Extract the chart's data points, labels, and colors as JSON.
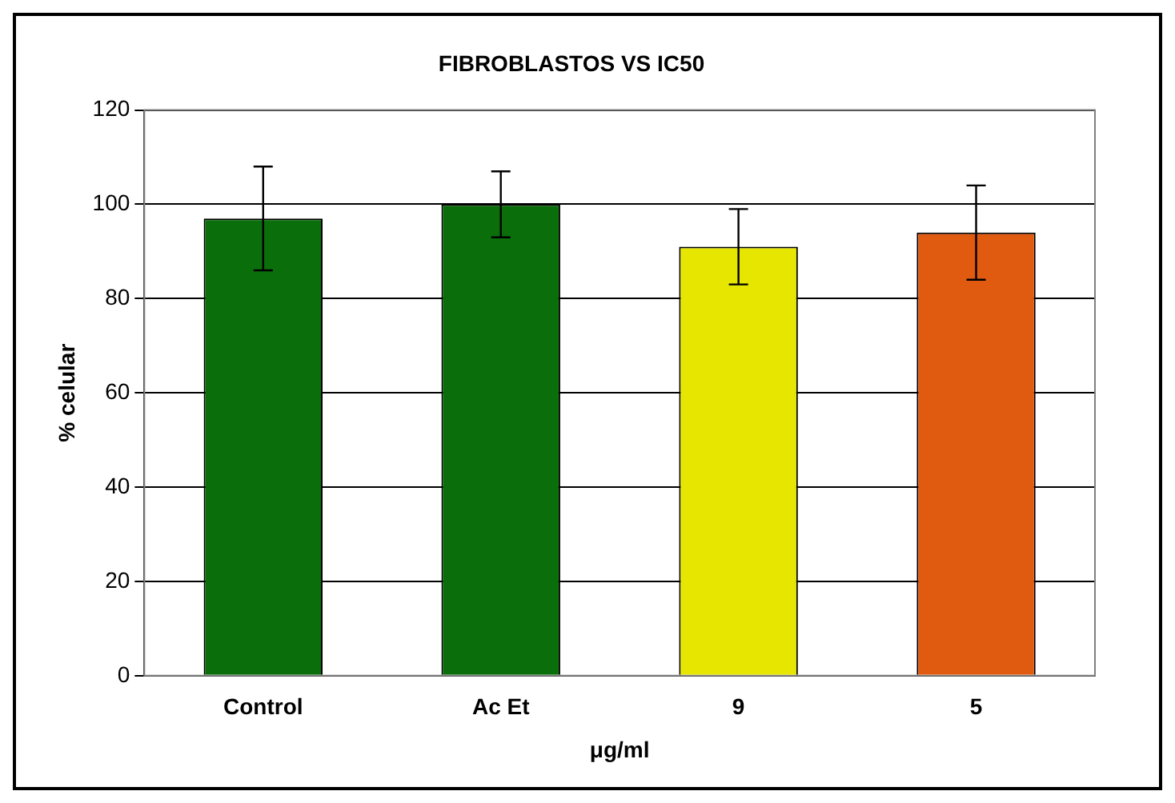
{
  "chart_data": {
    "type": "bar",
    "title": "FIBROBLASTOS VS IC50",
    "xlabel": "μg/ml",
    "ylabel": "% celular",
    "categories": [
      "Control",
      "Ac Et",
      "9",
      "5"
    ],
    "values": [
      97,
      100,
      91,
      94
    ],
    "errors": [
      11,
      7,
      8,
      10
    ],
    "colors": [
      "#0a6e0a",
      "#0a6e0a",
      "#e6e600",
      "#e05a10"
    ],
    "ylim": [
      0,
      120
    ],
    "yticks": [
      0,
      20,
      40,
      60,
      80,
      100,
      120
    ],
    "grid": "y",
    "legend": false
  }
}
